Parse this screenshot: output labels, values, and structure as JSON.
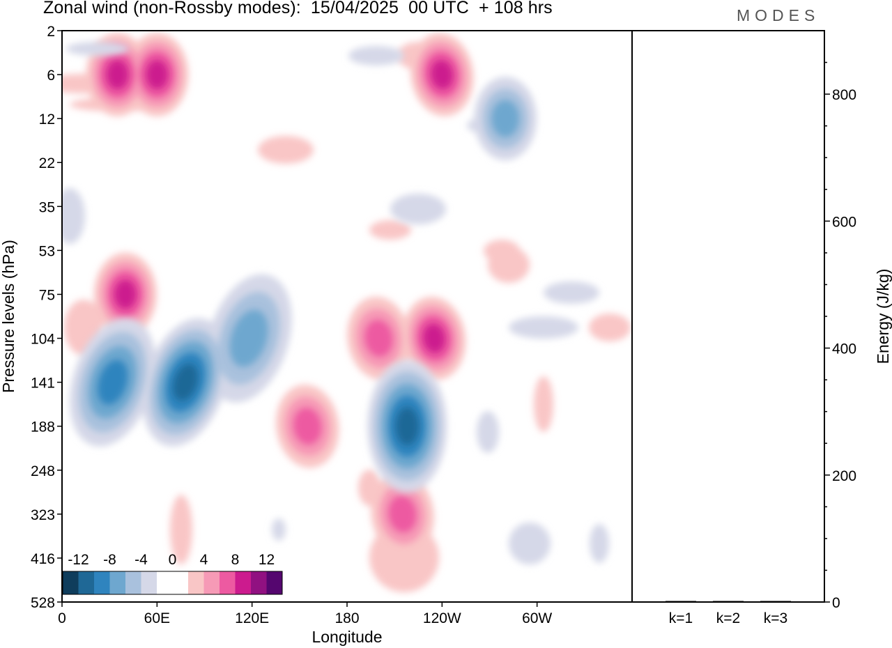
{
  "header": {
    "title": "Zonal wind (non-Rossby modes):  15/04/2025  00 UTC  + 108 hrs",
    "brand": "MODES"
  },
  "colors": {
    "negative": [
      "#0f3d5c",
      "#1f6896",
      "#2f84be",
      "#6ea7cf",
      "#a9c1dd",
      "#d5d8e8"
    ],
    "zero": "#ffffff",
    "positive": [
      "#f9c6c6",
      "#f69ab6",
      "#ed5aa1",
      "#cc1b8e",
      "#911181",
      "#55066f"
    ]
  },
  "chart_data": [
    {
      "type": "heatmap",
      "title": "Zonal wind (non-Rossby modes):  15/04/2025  00 UTC  + 108 hrs",
      "xlabel": "Longitude",
      "ylabel": "Pressure levels (hPa)",
      "x_ticks": [
        "0",
        "60E",
        "120E",
        "180",
        "120W",
        "60W"
      ],
      "y_ticks": [
        "2",
        "6",
        "12",
        "22",
        "35",
        "53",
        "75",
        "104",
        "141",
        "188",
        "248",
        "323",
        "416",
        "528"
      ],
      "colorbar_labels": [
        "-12",
        "-8",
        "-4",
        "0",
        "4",
        "8",
        "12"
      ],
      "colorbar_levels": [
        -14,
        -12,
        -10,
        -8,
        -6,
        -4,
        -2,
        2,
        4,
        6,
        8,
        10,
        12,
        14
      ],
      "features": [
        {
          "lon": 32,
          "level": "141",
          "value": -9
        },
        {
          "lon": 78,
          "level": "141",
          "value": -10
        },
        {
          "lon": 118,
          "level": "104",
          "value": -7
        },
        {
          "lon": 218,
          "level": "188",
          "value": -10
        },
        {
          "lon": 40,
          "level": "75",
          "value": 8
        },
        {
          "lon": 155,
          "level": "188",
          "value": 6
        },
        {
          "lon": 200,
          "level": "104",
          "value": 6
        },
        {
          "lon": 235,
          "level": "104",
          "value": 9
        },
        {
          "lon": 215,
          "level": "323",
          "value": 6
        },
        {
          "lon": 35,
          "level": "6",
          "value": 8
        },
        {
          "lon": 60,
          "level": "6",
          "value": 8
        },
        {
          "lon": 240,
          "level": "6",
          "value": 8
        },
        {
          "lon": 280,
          "level": "12",
          "value": -6
        }
      ]
    },
    {
      "type": "bar",
      "categories": [
        "k=1",
        "k=2",
        "k=3"
      ],
      "values": [
        1.5,
        1.2,
        0.8
      ],
      "ylabel": "Energy (J/kg)",
      "y_ticks": [
        "0",
        "200",
        "400",
        "600",
        "800"
      ],
      "ylim": [
        0,
        900
      ]
    }
  ]
}
